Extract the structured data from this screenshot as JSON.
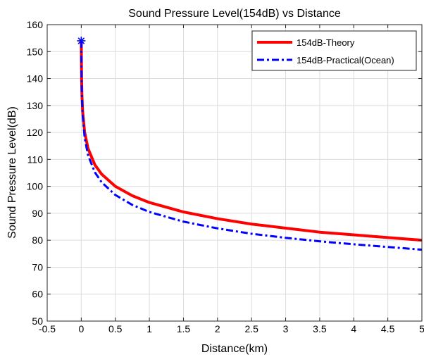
{
  "chart_data": {
    "type": "line",
    "title": "Sound Pressure Level(154dB) vs Distance",
    "xlabel": "Distance(km)",
    "ylabel": "Sound Pressure Level(dB)",
    "xlim": [
      -0.5,
      5
    ],
    "ylim": [
      50,
      160
    ],
    "xticks": [
      -0.5,
      0,
      0.5,
      1,
      1.5,
      2,
      2.5,
      3,
      3.5,
      4,
      4.5,
      5
    ],
    "xtick_labels": [
      "-0.5",
      "0",
      "0.5",
      "1",
      "1.5",
      "2",
      "2.5",
      "3",
      "3.5",
      "4",
      "4.5",
      "5"
    ],
    "yticks": [
      50,
      60,
      70,
      80,
      90,
      100,
      110,
      120,
      130,
      140,
      150,
      160
    ],
    "ytick_labels": [
      "50",
      "60",
      "70",
      "80",
      "90",
      "100",
      "110",
      "120",
      "130",
      "140",
      "150",
      "160"
    ],
    "grid": true,
    "legend_position": "top-right",
    "series": [
      {
        "name": "154dB-Theory",
        "color": "#ff0000",
        "style": "solid",
        "x": [
          0.001,
          0.002,
          0.005,
          0.01,
          0.02,
          0.05,
          0.1,
          0.2,
          0.3,
          0.5,
          0.75,
          1,
          1.5,
          2,
          2.5,
          3,
          3.5,
          4,
          4.5,
          5
        ],
        "y": [
          154,
          148,
          140,
          134,
          128,
          120,
          114,
          108,
          104.5,
          100,
          96.5,
          94,
          90.5,
          88,
          86,
          84.5,
          83,
          82,
          81,
          80
        ]
      },
      {
        "name": "154dB-Practical(Ocean)",
        "color": "#0000ff",
        "style": "dashdot",
        "x": [
          0.001,
          0.002,
          0.005,
          0.01,
          0.02,
          0.05,
          0.1,
          0.2,
          0.3,
          0.5,
          0.75,
          1,
          1.5,
          2,
          2.5,
          3,
          3.5,
          4,
          4.5,
          5
        ],
        "y": [
          154,
          147.5,
          139,
          133,
          126.5,
          118,
          111.5,
          105.2,
          101.5,
          96.8,
          93.1,
          90.5,
          86.9,
          84.4,
          82.4,
          80.9,
          79.6,
          78.5,
          77.5,
          76.5
        ]
      }
    ],
    "marker": {
      "x": 0,
      "y": 154,
      "symbol": "*",
      "color": "#0000ff"
    }
  }
}
